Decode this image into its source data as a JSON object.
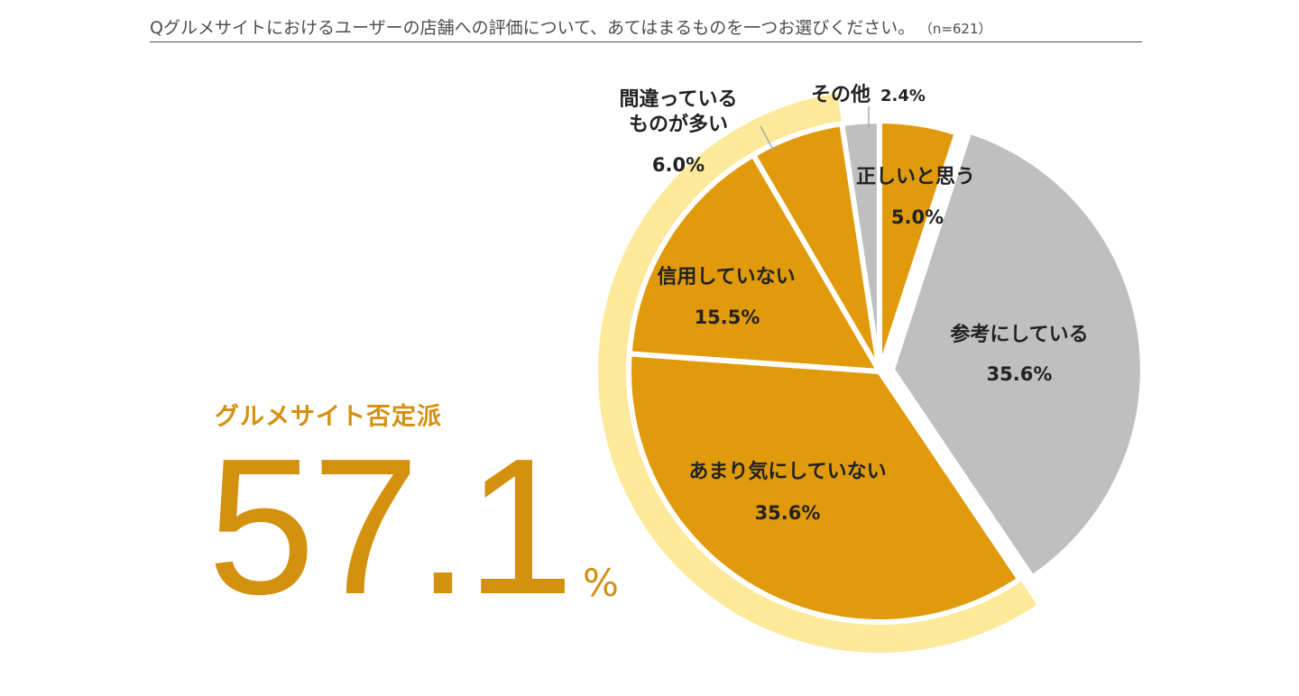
{
  "header": {
    "question": "Qグルメサイトにおけるユーザーの店舗への評価について、あてはまるものを一つお選びください。",
    "sample": "（n=621）"
  },
  "callout": {
    "label": "グルメサイト否定派",
    "value": "57.1",
    "unit": "%"
  },
  "colors": {
    "accent": "#d4900f",
    "negative": "#e09a0b",
    "positive": "#bfbfbf",
    "band": "#fde99a",
    "separator": "#ffffff"
  },
  "chart_data": {
    "type": "pie",
    "title": "Qグルメサイトにおけるユーザーの店舗への評価について、あてはまるものを一つお選びください。（n=621）",
    "n": 621,
    "start": "12 o'clock",
    "direction": "clockwise",
    "slices": [
      {
        "id": "correct",
        "label": "正しいと思う",
        "value": 5.0,
        "display": "5.0%",
        "group": "negative"
      },
      {
        "id": "reference",
        "label": "参考にしている",
        "value": 35.6,
        "display": "35.6%",
        "group": "positive",
        "exploded": true
      },
      {
        "id": "dont-care",
        "label": "あまり気にしていない",
        "value": 35.6,
        "display": "35.6%",
        "group": "negative"
      },
      {
        "id": "distrust",
        "label": "信用していない",
        "value": 15.5,
        "display": "15.5%",
        "group": "negative"
      },
      {
        "id": "many-wrong",
        "label": "間違っているものが多い",
        "value": 6.0,
        "display": "6.0%",
        "group": "negative",
        "label_lines": [
          "間違っている",
          "ものが多い"
        ]
      },
      {
        "id": "other",
        "label": "その他",
        "value": 2.4,
        "display": "2.4%",
        "group": "positive"
      }
    ],
    "highlight": {
      "label": "グルメサイト否定派",
      "value": 57.1,
      "unit": "%",
      "slices": [
        "dont-care",
        "distrust",
        "many-wrong"
      ]
    }
  }
}
